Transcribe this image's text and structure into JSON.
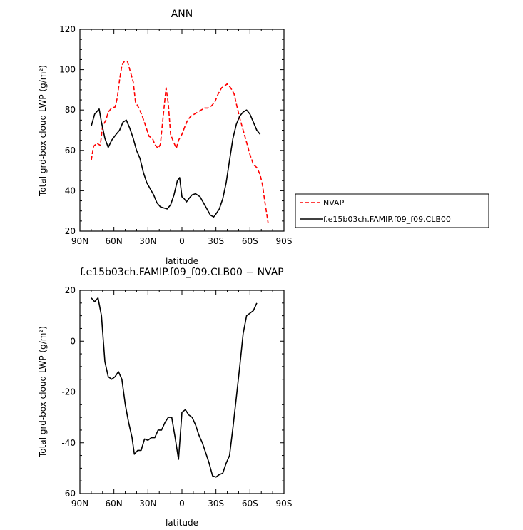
{
  "chart_data": [
    {
      "type": "line",
      "title": "ANN",
      "xlabel": "latitude",
      "ylabel": "Total grd-box cloud LWP (g/m²)",
      "xlim": [
        90,
        -90
      ],
      "ylim": [
        20,
        120
      ],
      "x_ticks": [
        "90N",
        "60N",
        "30N",
        "0",
        "30S",
        "60S",
        "90S"
      ],
      "y_ticks": [
        "20",
        "40",
        "60",
        "80",
        "100",
        "120"
      ],
      "legend": {
        "placement": "right"
      },
      "series": [
        {
          "name": "NVAP",
          "color": "#ff0000",
          "dash": "dashed",
          "points": [
            [
              80,
              55
            ],
            [
              78,
              62
            ],
            [
              75,
              63.5
            ],
            [
              72,
              62.5
            ],
            [
              70,
              72
            ],
            [
              67,
              75
            ],
            [
              65,
              79
            ],
            [
              62,
              81
            ],
            [
              59,
              81.5
            ],
            [
              57,
              86
            ],
            [
              55,
              95
            ],
            [
              53,
              102
            ],
            [
              51,
              104
            ],
            [
              48,
              104
            ],
            [
              46,
              100
            ],
            [
              43,
              94
            ],
            [
              41,
              84
            ],
            [
              38,
              81
            ],
            [
              35,
              77
            ],
            [
              32,
              72
            ],
            [
              29,
              67
            ],
            [
              26,
              66
            ],
            [
              24,
              63
            ],
            [
              21,
              61
            ],
            [
              19,
              63
            ],
            [
              16,
              80
            ],
            [
              14,
              91
            ],
            [
              12,
              83
            ],
            [
              10,
              68
            ],
            [
              8,
              65
            ],
            [
              5,
              61
            ],
            [
              3,
              65
            ],
            [
              0,
              68
            ],
            [
              -2,
              71
            ],
            [
              -5,
              75
            ],
            [
              -8,
              77
            ],
            [
              -11,
              78
            ],
            [
              -14,
              79
            ],
            [
              -17,
              80
            ],
            [
              -20,
              81
            ],
            [
              -23,
              81
            ],
            [
              -26,
              82
            ],
            [
              -29,
              84
            ],
            [
              -32,
              88
            ],
            [
              -35,
              91
            ],
            [
              -38,
              92
            ],
            [
              -40,
              93
            ],
            [
              -43,
              91
            ],
            [
              -46,
              88
            ],
            [
              -48,
              83
            ],
            [
              -51,
              76
            ],
            [
              -54,
              70
            ],
            [
              -57,
              64
            ],
            [
              -60,
              58
            ],
            [
              -63,
              53
            ],
            [
              -66,
              51.5
            ],
            [
              -69,
              48
            ],
            [
              -71,
              43
            ],
            [
              -73,
              35
            ],
            [
              -76,
              24
            ]
          ]
        },
        {
          "name": "f.e15b03ch.FAMIP.f09_f09.CLB00",
          "color": "#000000",
          "dash": "solid",
          "points": [
            [
              80,
              72
            ],
            [
              77,
              78
            ],
            [
              73,
              80.5
            ],
            [
              71,
              74
            ],
            [
              68,
              66
            ],
            [
              65,
              61.5
            ],
            [
              62,
              65
            ],
            [
              58,
              68
            ],
            [
              55,
              70
            ],
            [
              52,
              74
            ],
            [
              49,
              75
            ],
            [
              46,
              71
            ],
            [
              43,
              66
            ],
            [
              40,
              60
            ],
            [
              37,
              56
            ],
            [
              34,
              49
            ],
            [
              31,
              44
            ],
            [
              28,
              41
            ],
            [
              25,
              38
            ],
            [
              22,
              34
            ],
            [
              19,
              32
            ],
            [
              16,
              31.5
            ],
            [
              13,
              31
            ],
            [
              10,
              33
            ],
            [
              7,
              38
            ],
            [
              4,
              45
            ],
            [
              2,
              46.5
            ],
            [
              0,
              37
            ],
            [
              -2,
              36
            ],
            [
              -4,
              34.5
            ],
            [
              -6,
              36
            ],
            [
              -9,
              38
            ],
            [
              -12,
              38.5
            ],
            [
              -16,
              37
            ],
            [
              -19,
              34
            ],
            [
              -22,
              31
            ],
            [
              -25,
              28
            ],
            [
              -28,
              27
            ],
            [
              -30,
              28.5
            ],
            [
              -33,
              31
            ],
            [
              -36,
              36
            ],
            [
              -39,
              44
            ],
            [
              -42,
              55
            ],
            [
              -45,
              66
            ],
            [
              -48,
              73
            ],
            [
              -51,
              77
            ],
            [
              -54,
              79
            ],
            [
              -57,
              80
            ],
            [
              -60,
              78
            ],
            [
              -63,
              74
            ],
            [
              -66,
              70
            ],
            [
              -69,
              68
            ]
          ]
        }
      ]
    },
    {
      "type": "line",
      "title": "f.e15b03ch.FAMIP.f09_f09.CLB00 − NVAP",
      "xlabel": "latitude",
      "ylabel": "Total grd-box cloud LWP (g/m²)",
      "xlim": [
        90,
        -90
      ],
      "ylim": [
        -60,
        20
      ],
      "x_ticks": [
        "90N",
        "60N",
        "30N",
        "0",
        "30S",
        "60S",
        "90S"
      ],
      "y_ticks": [
        "-60",
        "-40",
        "-20",
        "0",
        "20"
      ],
      "series": [
        {
          "color": "#000000",
          "dash": "solid",
          "points": [
            [
              80,
              17
            ],
            [
              77,
              15.5
            ],
            [
              74,
              17
            ],
            [
              71,
              10
            ],
            [
              68,
              -8
            ],
            [
              65,
              -14
            ],
            [
              62,
              -15
            ],
            [
              59,
              -14
            ],
            [
              56,
              -12
            ],
            [
              53,
              -15
            ],
            [
              50,
              -25
            ],
            [
              47,
              -32
            ],
            [
              44,
              -38
            ],
            [
              42,
              -44.5
            ],
            [
              39,
              -43
            ],
            [
              36,
              -43
            ],
            [
              33,
              -38.5
            ],
            [
              30,
              -39
            ],
            [
              27,
              -38
            ],
            [
              24,
              -38
            ],
            [
              21,
              -35
            ],
            [
              18,
              -35
            ],
            [
              15,
              -32
            ],
            [
              12,
              -30
            ],
            [
              9,
              -30
            ],
            [
              6,
              -38
            ],
            [
              3,
              -46.5
            ],
            [
              0,
              -28
            ],
            [
              -3,
              -27
            ],
            [
              -6,
              -29
            ],
            [
              -9,
              -30
            ],
            [
              -12,
              -33
            ],
            [
              -15,
              -37
            ],
            [
              -18,
              -40
            ],
            [
              -21,
              -44
            ],
            [
              -24,
              -48
            ],
            [
              -27,
              -53
            ],
            [
              -30,
              -53.5
            ],
            [
              -33,
              -52.5
            ],
            [
              -36,
              -52
            ],
            [
              -39,
              -48
            ],
            [
              -42,
              -45
            ],
            [
              -45,
              -34
            ],
            [
              -48,
              -22
            ],
            [
              -51,
              -10
            ],
            [
              -54,
              3
            ],
            [
              -57,
              10
            ],
            [
              -60,
              11
            ],
            [
              -63,
              12
            ],
            [
              -66,
              15
            ]
          ]
        }
      ]
    }
  ]
}
